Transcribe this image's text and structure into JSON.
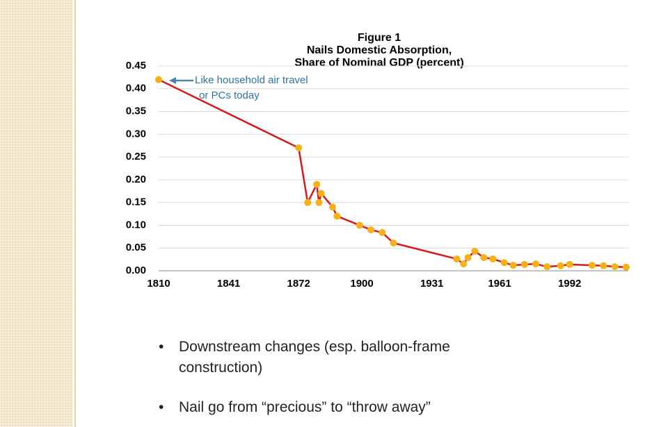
{
  "chart_data": {
    "type": "line",
    "title": "Figure 1",
    "subtitle": [
      "Nails Domestic Absorption,",
      "Share of Nominal GDP (percent)"
    ],
    "annotation": [
      "Like household air travel",
      "or PCs today"
    ],
    "x": [
      1810,
      1872,
      1876,
      1880,
      1881,
      1882,
      1887,
      1889,
      1899,
      1904,
      1909,
      1914,
      1942,
      1945,
      1947,
      1950,
      1954,
      1958,
      1963,
      1967,
      1972,
      1977,
      1982,
      1988,
      1992,
      2002,
      2007,
      2012,
      2017
    ],
    "values": [
      0.42,
      0.27,
      0.15,
      0.19,
      0.15,
      0.17,
      0.14,
      0.12,
      0.1,
      0.09,
      0.084,
      0.061,
      0.026,
      0.015,
      0.029,
      0.043,
      0.029,
      0.026,
      0.018,
      0.012,
      0.014,
      0.015,
      0.009,
      0.011,
      0.014,
      0.012,
      0.011,
      0.009,
      0.008
    ],
    "color": "#d7191c",
    "marker_color": "#f5b117",
    "xlim": [
      1810,
      2018
    ],
    "xticks": [
      1810,
      1841,
      1872,
      1900,
      1931,
      1961,
      1992
    ],
    "ylim": [
      0,
      0.45
    ],
    "yticks": [
      {
        "value": 0,
        "label": "0.00"
      },
      0.05,
      {
        "value": 0.1,
        "label": "0.10"
      },
      0.15,
      {
        "value": 0.2,
        "label": "0.20"
      },
      0.25,
      {
        "value": 0.3,
        "label": "0.30"
      },
      0.35,
      {
        "value": 0.4,
        "label": "0.40"
      },
      0.45
    ],
    "grid": true
  },
  "bullets": [
    "Downstream changes (esp. balloon-frame construction)",
    "Nail go from “precious” to “throw away”"
  ]
}
